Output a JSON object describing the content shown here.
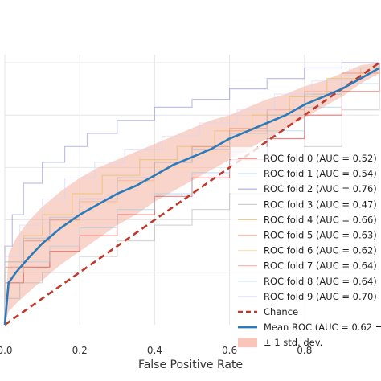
{
  "chart_data": {
    "type": "line",
    "title": "",
    "xlabel": "False Positive Rate",
    "ylabel": "",
    "xlim": [
      0,
      1
    ],
    "ylim": [
      0,
      1
    ],
    "x_ticks": [
      "0.0",
      "0.2",
      "0.4",
      "0.6",
      "0.8"
    ],
    "x_ticks_values": [
      0.0,
      0.2,
      0.4,
      0.6,
      0.8
    ],
    "grid": true,
    "legend_position": "lower-right",
    "series": [
      {
        "name": "ROC fold 0 (AUC = 0.52)",
        "color": "#d62728",
        "style": "step",
        "x": [
          0,
          0,
          0.05,
          0.12,
          0.2,
          0.3,
          0.4,
          0.5,
          0.6,
          0.7,
          0.8,
          0.9,
          1.0
        ],
        "y": [
          0,
          0.16,
          0.22,
          0.28,
          0.34,
          0.42,
          0.49,
          0.56,
          0.63,
          0.71,
          0.8,
          0.89,
          1.0
        ]
      },
      {
        "name": "ROC fold 1 (AUC = 0.54)",
        "color": "#9ecae1",
        "style": "step",
        "x": [
          0,
          0,
          0.05,
          0.12,
          0.2,
          0.3,
          0.4,
          0.5,
          0.6,
          0.7,
          0.8,
          0.9,
          1.0
        ],
        "y": [
          0,
          0.2,
          0.24,
          0.3,
          0.37,
          0.44,
          0.5,
          0.58,
          0.66,
          0.74,
          0.83,
          0.92,
          1.0
        ]
      },
      {
        "name": "ROC fold 2 (AUC = 0.76)",
        "color": "#8c8cd9",
        "style": "step",
        "x": [
          0,
          0,
          0.02,
          0.05,
          0.1,
          0.16,
          0.22,
          0.3,
          0.4,
          0.5,
          0.6,
          0.7,
          0.8,
          0.9,
          1.0
        ],
        "y": [
          0,
          0.3,
          0.42,
          0.54,
          0.62,
          0.68,
          0.73,
          0.78,
          0.83,
          0.86,
          0.9,
          0.94,
          0.98,
          1.0,
          1.0
        ]
      },
      {
        "name": "ROC fold 3 (AUC = 0.47)",
        "color": "#b3b3b3",
        "style": "step",
        "x": [
          0,
          0,
          0.04,
          0.1,
          0.2,
          0.3,
          0.4,
          0.5,
          0.6,
          0.7,
          0.8,
          0.9,
          1.0
        ],
        "y": [
          0,
          0.1,
          0.16,
          0.2,
          0.26,
          0.32,
          0.38,
          0.44,
          0.5,
          0.58,
          0.68,
          0.82,
          1.0
        ]
      },
      {
        "name": "ROC fold 4 (AUC = 0.66)",
        "color": "#e7ba52",
        "style": "step",
        "x": [
          0,
          0,
          0.05,
          0.1,
          0.18,
          0.26,
          0.36,
          0.46,
          0.56,
          0.66,
          0.76,
          0.86,
          0.95,
          1.0
        ],
        "y": [
          0,
          0.24,
          0.34,
          0.42,
          0.5,
          0.57,
          0.63,
          0.68,
          0.74,
          0.8,
          0.87,
          0.94,
          0.98,
          1.0
        ]
      },
      {
        "name": "ROC fold 5 (AUC = 0.63)",
        "color": "#f4a582",
        "style": "step",
        "x": [
          0,
          0,
          0.05,
          0.12,
          0.2,
          0.3,
          0.4,
          0.5,
          0.6,
          0.7,
          0.8,
          0.9,
          1.0
        ],
        "y": [
          0,
          0.22,
          0.32,
          0.4,
          0.47,
          0.55,
          0.62,
          0.68,
          0.74,
          0.8,
          0.88,
          0.96,
          1.0
        ]
      },
      {
        "name": "ROC fold 6 (AUC = 0.62)",
        "color": "#fdd49e",
        "style": "step",
        "x": [
          0,
          0,
          0.05,
          0.12,
          0.2,
          0.3,
          0.4,
          0.5,
          0.6,
          0.7,
          0.8,
          0.9,
          1.0
        ],
        "y": [
          0,
          0.2,
          0.3,
          0.38,
          0.46,
          0.54,
          0.6,
          0.66,
          0.72,
          0.8,
          0.88,
          0.95,
          1.0
        ]
      },
      {
        "name": "ROC fold 7 (AUC = 0.64)",
        "color": "#e9967a",
        "style": "step",
        "x": [
          0,
          0,
          0.05,
          0.12,
          0.2,
          0.3,
          0.4,
          0.5,
          0.6,
          0.7,
          0.8,
          0.9,
          1.0
        ],
        "y": [
          0,
          0.22,
          0.32,
          0.4,
          0.48,
          0.56,
          0.62,
          0.68,
          0.75,
          0.82,
          0.89,
          0.96,
          1.0
        ]
      },
      {
        "name": "ROC fold 8 (AUC = 0.64)",
        "color": "#a6bddb",
        "style": "step",
        "x": [
          0,
          0,
          0.05,
          0.12,
          0.2,
          0.3,
          0.4,
          0.5,
          0.6,
          0.7,
          0.8,
          0.9,
          1.0
        ],
        "y": [
          0,
          0.24,
          0.33,
          0.41,
          0.48,
          0.56,
          0.62,
          0.67,
          0.73,
          0.8,
          0.88,
          0.95,
          1.0
        ]
      },
      {
        "name": "ROC fold 9 (AUC = 0.70)",
        "color": "#d4d4f7",
        "style": "step",
        "x": [
          0,
          0,
          0.04,
          0.1,
          0.16,
          0.24,
          0.32,
          0.42,
          0.52,
          0.62,
          0.72,
          0.82,
          0.92,
          1.0
        ],
        "y": [
          0,
          0.26,
          0.38,
          0.48,
          0.56,
          0.62,
          0.67,
          0.72,
          0.77,
          0.82,
          0.88,
          0.93,
          0.98,
          1.0
        ]
      },
      {
        "name": "Chance",
        "color": "#c0392b",
        "style": "dashed",
        "x": [
          0,
          1
        ],
        "y": [
          0,
          1
        ]
      },
      {
        "name": "Mean ROC (AUC = 0.62 ±",
        "color": "#2b7bba",
        "style": "mean",
        "x": [
          0,
          0.01,
          0.03,
          0.06,
          0.1,
          0.15,
          0.2,
          0.25,
          0.3,
          0.35,
          0.4,
          0.45,
          0.5,
          0.55,
          0.6,
          0.65,
          0.7,
          0.75,
          0.8,
          0.85,
          0.9,
          0.95,
          1.0
        ],
        "y": [
          0,
          0.16,
          0.2,
          0.25,
          0.31,
          0.37,
          0.42,
          0.46,
          0.5,
          0.53,
          0.57,
          0.61,
          0.64,
          0.67,
          0.71,
          0.74,
          0.77,
          0.8,
          0.84,
          0.87,
          0.9,
          0.94,
          0.98
        ]
      }
    ],
    "std_band": {
      "name": "± 1 std. dev.",
      "color": "#f5b7a8",
      "x": [
        0,
        0.01,
        0.03,
        0.06,
        0.1,
        0.15,
        0.2,
        0.25,
        0.3,
        0.35,
        0.4,
        0.45,
        0.5,
        0.55,
        0.6,
        0.65,
        0.7,
        0.75,
        0.8,
        0.85,
        0.9,
        0.95,
        1.0
      ],
      "lower": [
        0,
        0.05,
        0.08,
        0.12,
        0.17,
        0.23,
        0.28,
        0.33,
        0.38,
        0.42,
        0.47,
        0.51,
        0.55,
        0.59,
        0.63,
        0.67,
        0.71,
        0.75,
        0.79,
        0.83,
        0.87,
        0.92,
        0.96
      ],
      "upper": [
        0,
        0.27,
        0.33,
        0.39,
        0.45,
        0.51,
        0.56,
        0.6,
        0.63,
        0.66,
        0.69,
        0.72,
        0.75,
        0.78,
        0.8,
        0.83,
        0.86,
        0.88,
        0.91,
        0.93,
        0.96,
        0.99,
        1.0
      ]
    }
  }
}
